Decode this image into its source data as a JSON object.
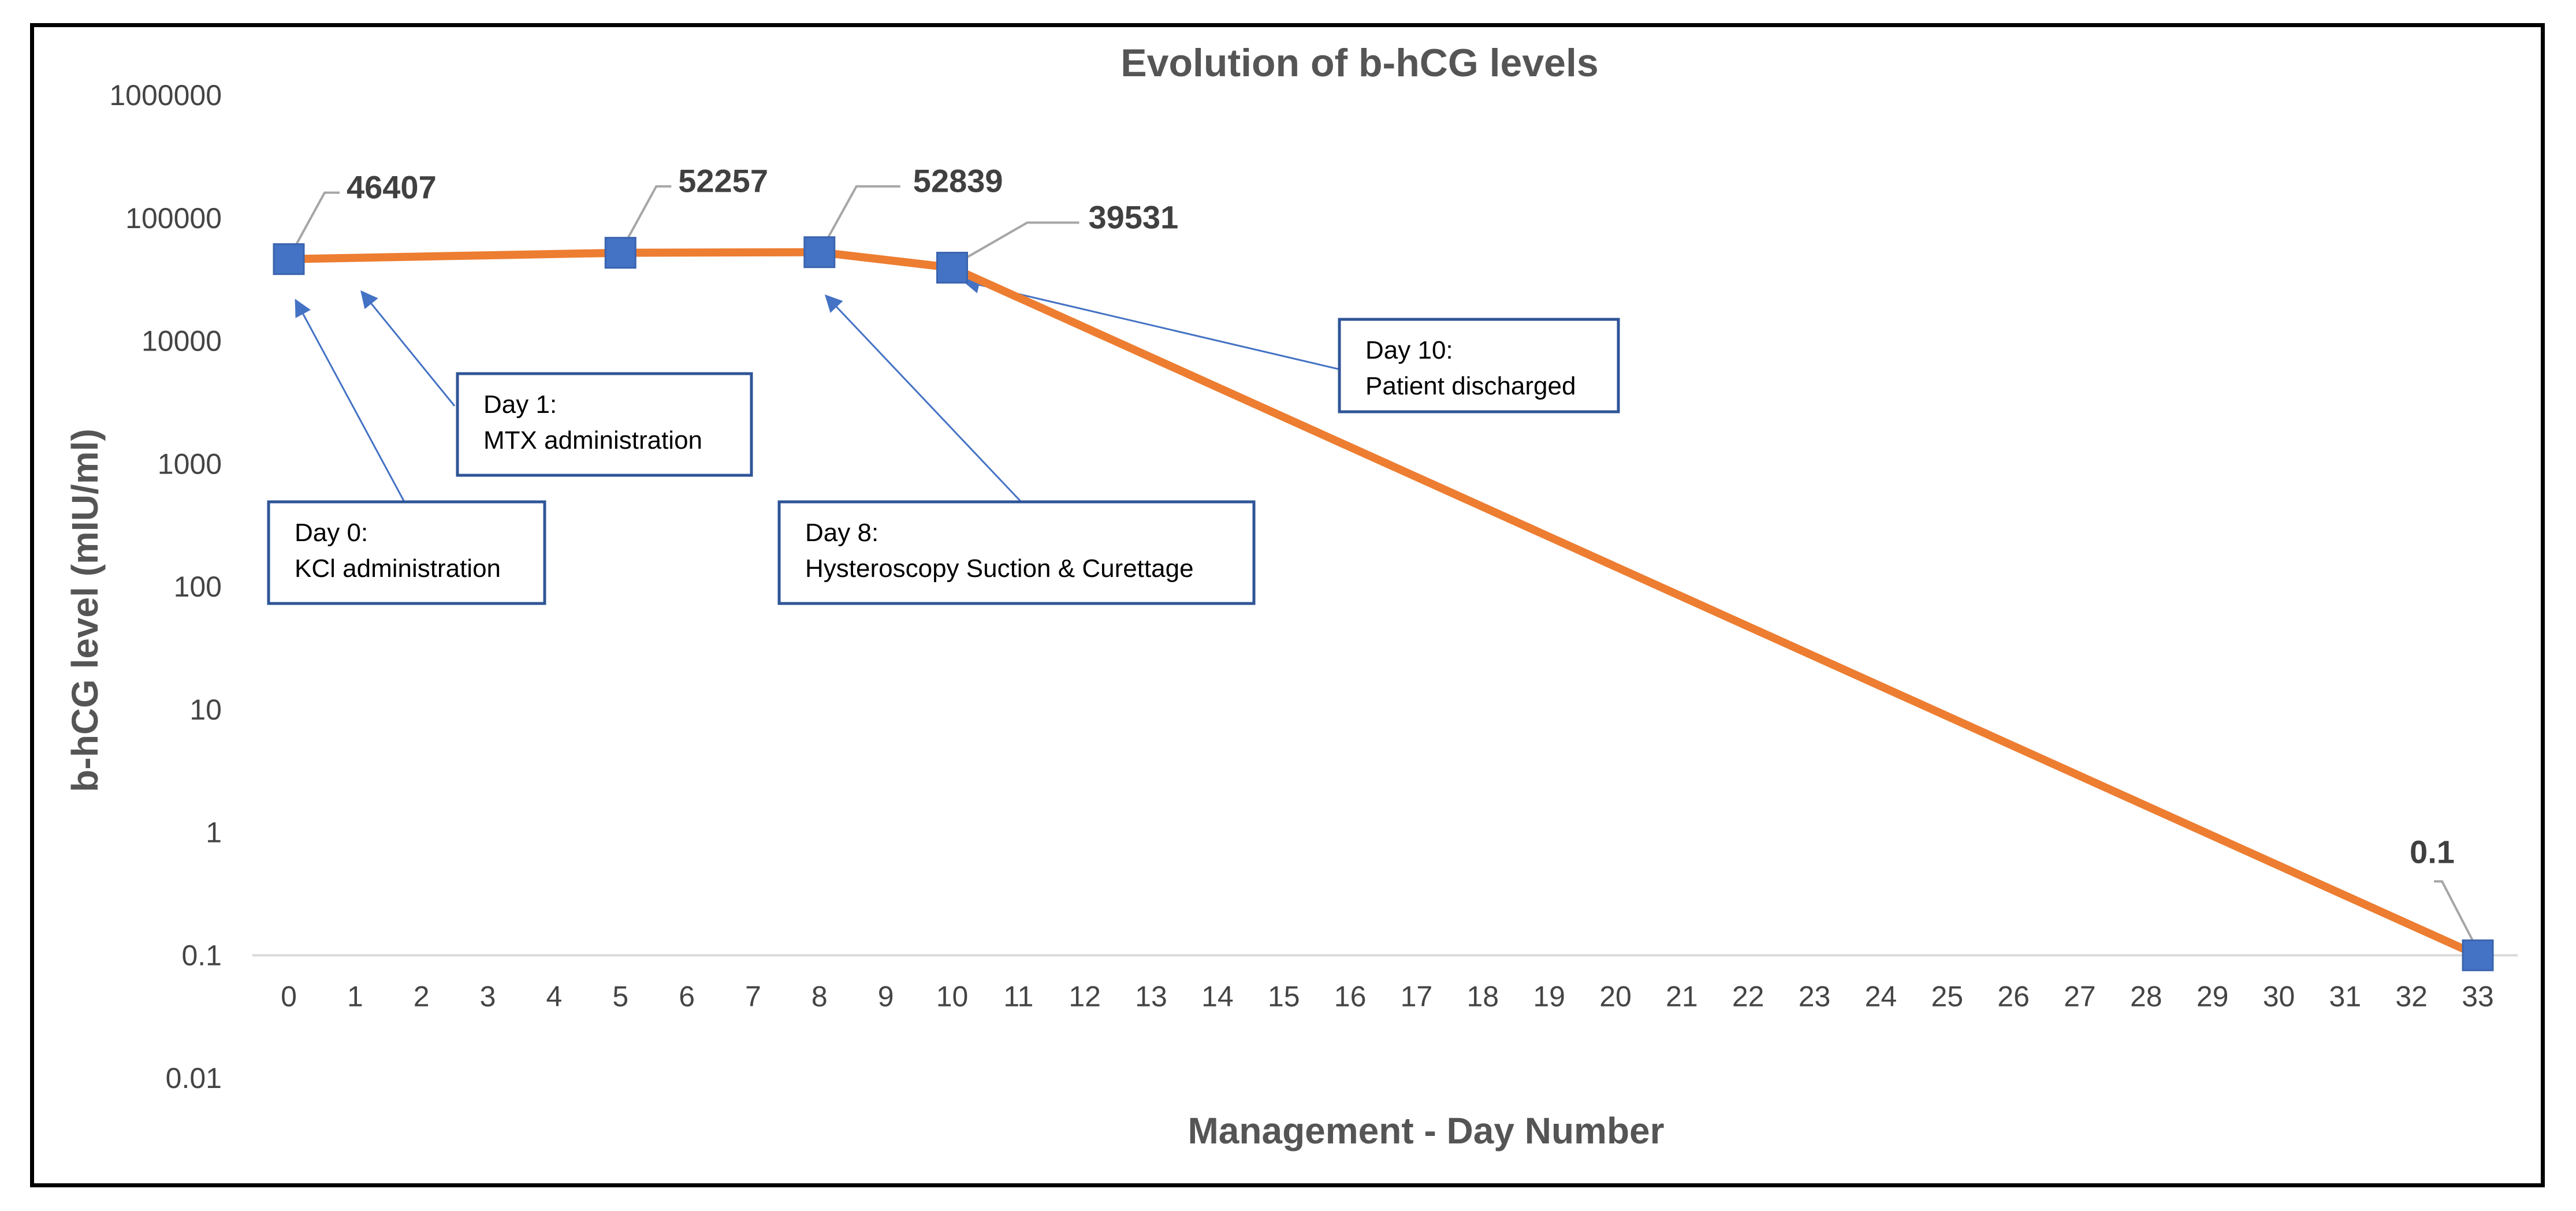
{
  "chart_data": {
    "type": "line",
    "title": "Evolution of b-hCG levels",
    "xlabel": "Management - Day Number",
    "ylabel": "b-hCG level (mIU/ml)",
    "y_scale": "log",
    "ylim": [
      0.01,
      1000000
    ],
    "y_ticks": [
      "1000000",
      "100000",
      "10000",
      "1000",
      "100",
      "10",
      "1",
      "0.1",
      "0.01"
    ],
    "y_tick_values": [
      1000000,
      100000,
      10000,
      1000,
      100,
      10,
      1,
      0.1,
      0.01
    ],
    "x_ticks": [
      0,
      1,
      2,
      3,
      4,
      5,
      6,
      7,
      8,
      9,
      10,
      11,
      12,
      13,
      14,
      15,
      16,
      17,
      18,
      19,
      20,
      21,
      22,
      23,
      24,
      25,
      26,
      27,
      28,
      29,
      30,
      31,
      32,
      33
    ],
    "series": [
      {
        "name": "b-hCG level",
        "color": "#ED7D31",
        "marker_color": "#4472C4",
        "x": [
          0,
          5,
          8,
          10,
          33
        ],
        "y": [
          46407,
          52257,
          52839,
          39531,
          0.1
        ],
        "labels": [
          "46407",
          "52257",
          "52839",
          "39531",
          "0.1"
        ]
      }
    ],
    "annotations": [
      {
        "line1": "Day 0:",
        "line2": "KCl administration",
        "target_day": 0
      },
      {
        "line1": "Day 1:",
        "line2": "MTX administration",
        "target_day": 1
      },
      {
        "line1": "Day 8:",
        "line2": "Hysteroscopy Suction &  Curettage",
        "target_day": 8
      },
      {
        "line1": "Day 10:",
        "line2": "Patient discharged",
        "target_day": 10
      }
    ],
    "colors": {
      "line": "#ED7D31",
      "marker": "#4472C4",
      "annotation_border": "#2F5597",
      "arrow": "#4472C4",
      "leader": "#A6A6A6"
    }
  }
}
